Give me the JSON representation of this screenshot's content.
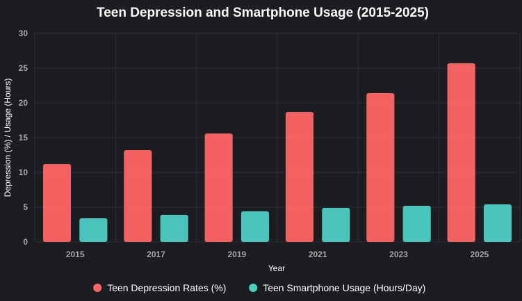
{
  "chart_data": {
    "type": "bar",
    "title": "Teen Depression and Smartphone Usage (2015-2025)",
    "xlabel": "Year",
    "ylabel": "Depression (%) / Usage (Hours)",
    "categories": [
      "2015",
      "2017",
      "2019",
      "2021",
      "2023",
      "2025"
    ],
    "ylim": [
      0,
      30
    ],
    "yticks": [
      0,
      5,
      10,
      15,
      20,
      25,
      30
    ],
    "grid": true,
    "legend_position": "bottom",
    "series": [
      {
        "name": "Teen Depression Rates (%)",
        "color": "#ff6666",
        "values": [
          11.2,
          13.2,
          15.6,
          18.7,
          21.4,
          25.7
        ]
      },
      {
        "name": "Teen Smartphone Usage (Hours/Day)",
        "color": "#4ecdc4",
        "values": [
          3.4,
          3.9,
          4.4,
          4.9,
          5.2,
          5.4
        ]
      }
    ]
  }
}
